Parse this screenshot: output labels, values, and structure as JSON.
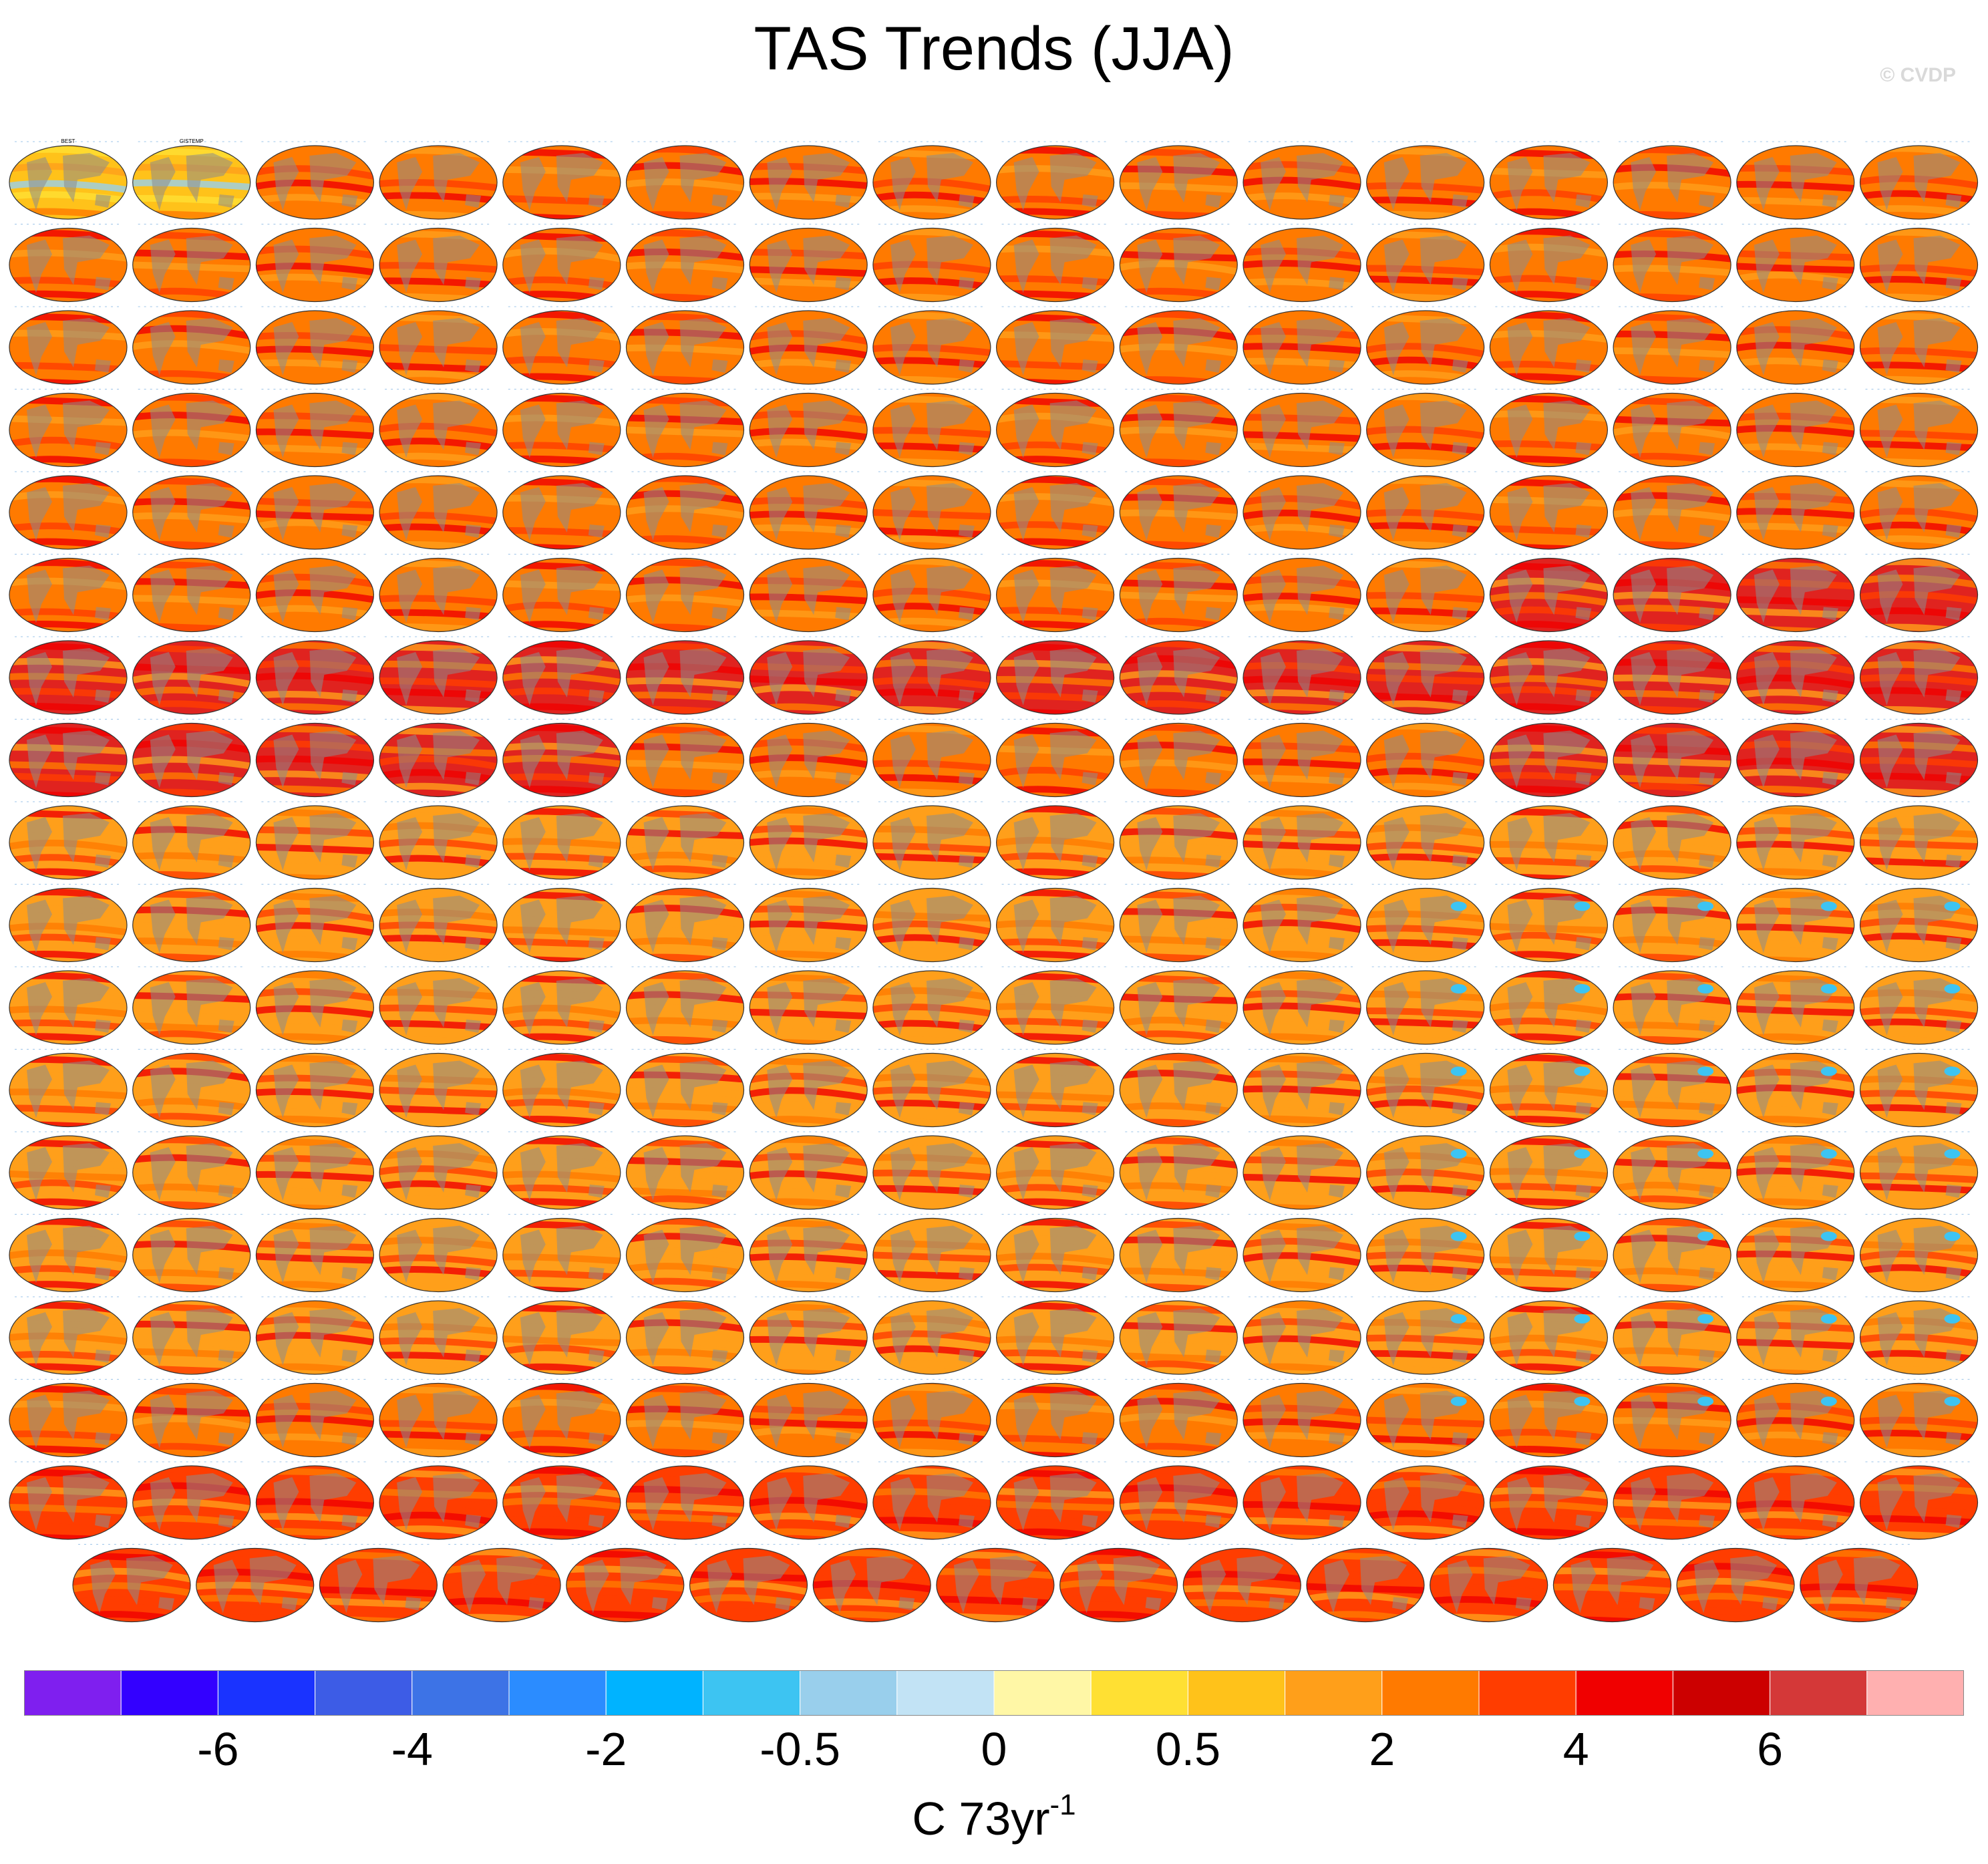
{
  "title": "TAS Trends (JJA)",
  "watermark": "© CVDP",
  "units": {
    "base": "C 73yr",
    "exponent": "-1"
  },
  "colors": {
    "land": "#8c8c8c",
    "colorbar": [
      "#7f1fef",
      "#3300ff",
      "#1a33ff",
      "#3d5ce6",
      "#3d73e6",
      "#2b8cff",
      "#00b3ff",
      "#3dc4f2",
      "#99cfec",
      "#c2e3f5",
      "#fff7a6",
      "#ffe033",
      "#ffc21a",
      "#ff9f1a",
      "#ff7a00",
      "#ff3d00",
      "#f00000",
      "#cc0000",
      "#d43838",
      "#ffb0b0"
    ]
  },
  "chart_data": {
    "type": "heatmap",
    "description_of_layout": "grid of global map panels, one per ensemble member",
    "rows": 18,
    "columns": 16,
    "last_row_panels": 15,
    "panel_titles_visible": [
      "BEST",
      "GISTEMP"
    ],
    "colorbar": {
      "tick_labels": [
        "-6",
        "-4",
        "-2",
        "-0.5",
        "0",
        "0.5",
        "2",
        "4",
        "6"
      ],
      "tick_boundary_index": [
        2,
        4,
        6,
        8,
        10,
        12,
        14,
        16,
        18
      ]
    }
  }
}
